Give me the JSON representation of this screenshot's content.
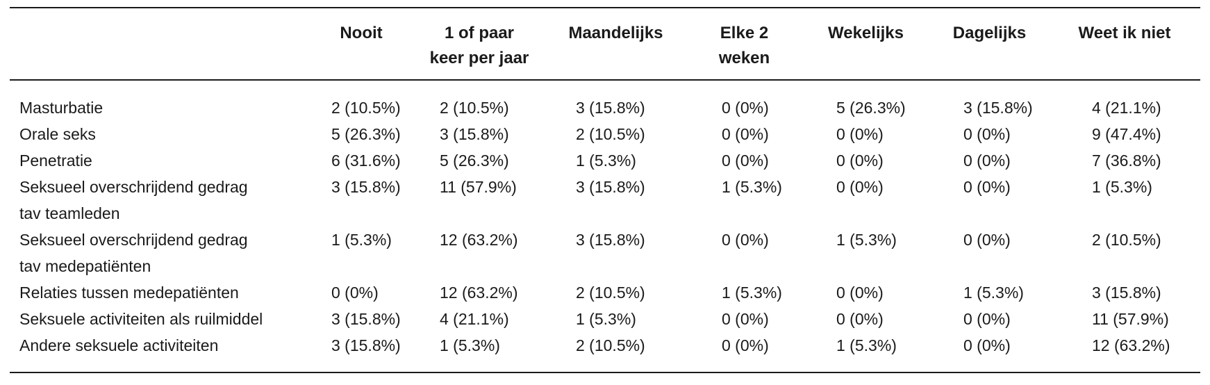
{
  "table": {
    "columns": [
      "",
      "Nooit",
      "1 of paar keer per jaar",
      "Maandelijks",
      "Elke 2 weken",
      "Wekelijks",
      "Dagelijks",
      "Weet ik niet"
    ],
    "rows": [
      {
        "label": "Masturbatie",
        "values": [
          "2 (10.5%)",
          "2 (10.5%)",
          "3 (15.8%)",
          "0 (0%)",
          "5 (26.3%)",
          "3 (15.8%)",
          "4 (21.1%)"
        ]
      },
      {
        "label": "Orale seks",
        "values": [
          "5 (26.3%)",
          "3 (15.8%)",
          "2 (10.5%)",
          "0 (0%)",
          "0 (0%)",
          "0 (0%)",
          "9 (47.4%)"
        ]
      },
      {
        "label": "Penetratie",
        "values": [
          "6 (31.6%)",
          "5 (26.3%)",
          "1 (5.3%)",
          "0 (0%)",
          "0 (0%)",
          "0 (0%)",
          "7 (36.8%)"
        ]
      },
      {
        "label": "Seksueel overschrijdend gedrag tav teamleden",
        "values": [
          "3 (15.8%)",
          "11 (57.9%)",
          "3 (15.8%)",
          "1 (5.3%)",
          "0 (0%)",
          "0 (0%)",
          "1 (5.3%)"
        ]
      },
      {
        "label": "Seksueel overschrijdend gedrag tav medepatiënten",
        "values": [
          "1 (5.3%)",
          "12 (63.2%)",
          "3 (15.8%)",
          "0 (0%)",
          "1 (5.3%)",
          "0 (0%)",
          "2 (10.5%)"
        ]
      },
      {
        "label": "Relaties tussen medepatiënten",
        "values": [
          "0 (0%)",
          "12 (63.2%)",
          "2 (10.5%)",
          "1 (5.3%)",
          "0 (0%)",
          "1 (5.3%)",
          "3 (15.8%)"
        ]
      },
      {
        "label": "Seksuele activiteiten als ruilmiddel",
        "values": [
          "3 (15.8%)",
          "4 (21.1%)",
          "1 (5.3%)",
          "0 (0%)",
          "0 (0%)",
          "0 (0%)",
          "11 (57.9%)"
        ]
      },
      {
        "label": "Andere seksuele activiteiten",
        "values": [
          "3 (15.8%)",
          "1 (5.3%)",
          "2 (10.5%)",
          "0 (0%)",
          "1 (5.3%)",
          "0 (0%)",
          "12 (63.2%)"
        ]
      }
    ]
  }
}
